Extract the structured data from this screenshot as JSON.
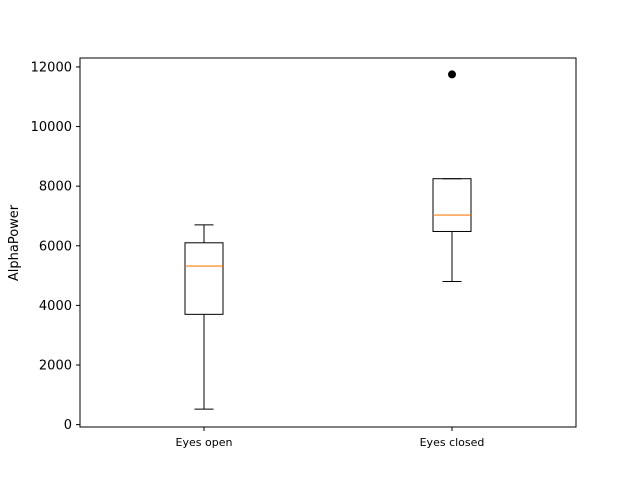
{
  "chart_data": {
    "type": "box",
    "ylabel": "AlphaPower",
    "xlabel": "",
    "ylim": [
      -80,
      12300
    ],
    "yticks": [
      0,
      2000,
      4000,
      6000,
      8000,
      10000,
      12000
    ],
    "categories": [
      "Eyes open",
      "Eyes closed"
    ],
    "boxes": [
      {
        "label": "Eyes open",
        "whisker_low": 520,
        "q1": 3700,
        "median": 5320,
        "q3": 6100,
        "whisker_high": 6700,
        "outliers": []
      },
      {
        "label": "Eyes closed",
        "whisker_low": 4800,
        "q1": 6480,
        "median": 7030,
        "q3": 8250,
        "whisker_high": 8250,
        "outliers": [
          11750
        ]
      }
    ],
    "colors": {
      "box": "#000000",
      "median": "#ff7f0e",
      "outlier": "#000000"
    },
    "grid": false
  }
}
